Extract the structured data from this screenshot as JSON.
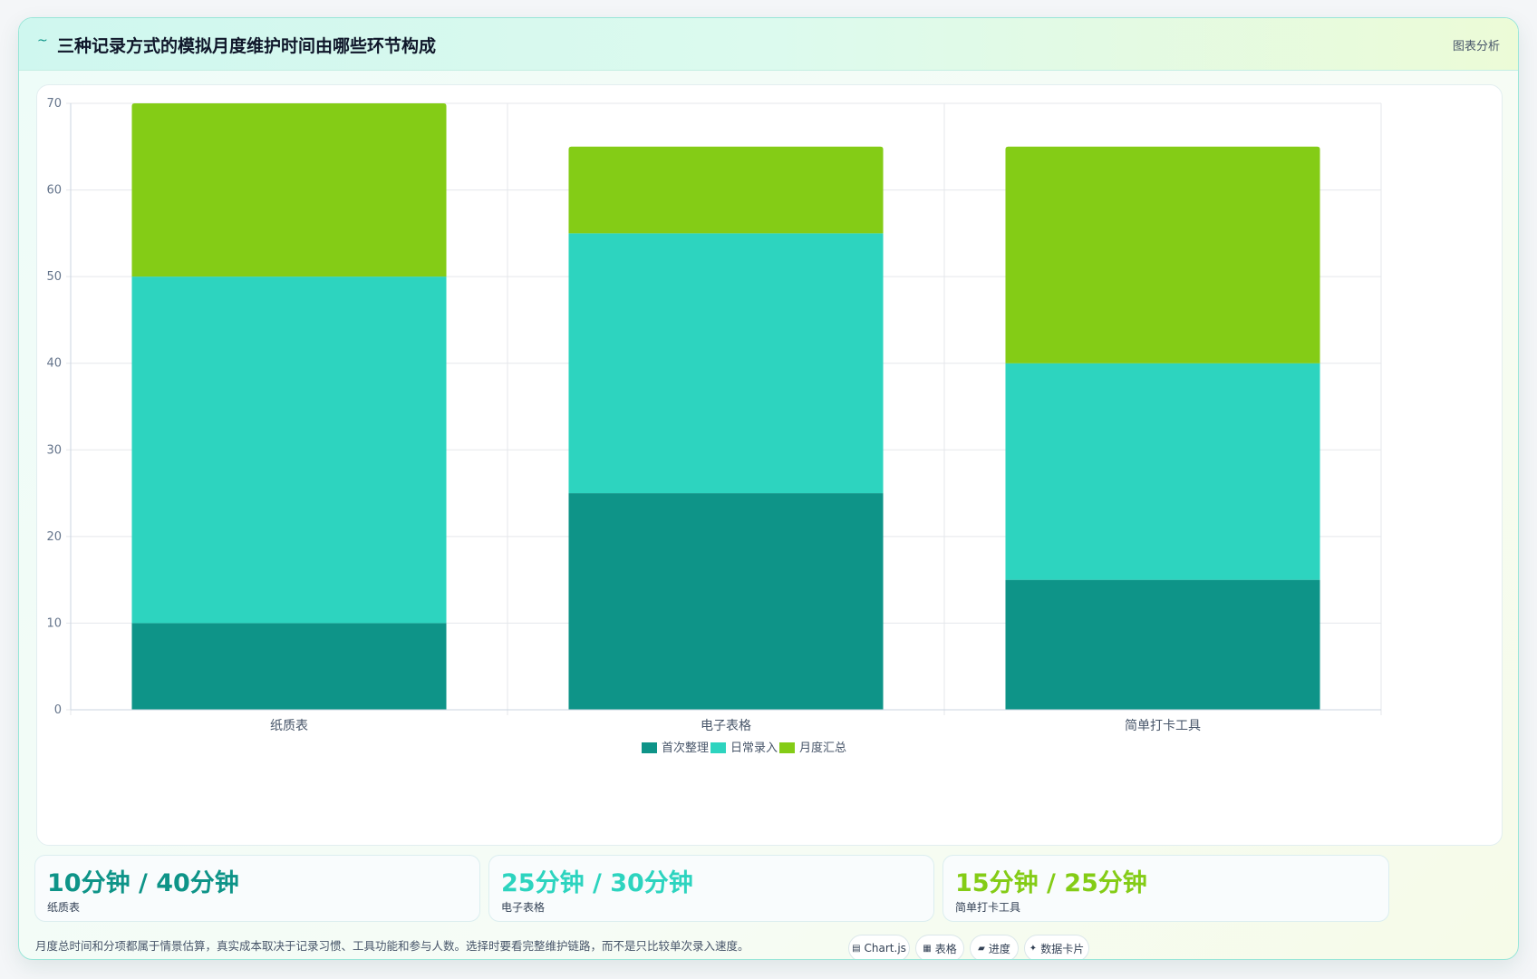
{
  "header": {
    "icon": "~",
    "title": "三种记录方式的模拟月度维护时间由哪些环节构成",
    "tag": "图表分析"
  },
  "colors": {
    "first_organize": "#0e9488",
    "daily_entry": "#2dd4bf",
    "monthly_summary": "#84cc16",
    "grid": "#e5e7eb"
  },
  "chart_data": {
    "type": "bar",
    "stacked": true,
    "categories": [
      "纸质表",
      "电子表格",
      "简单打卡工具"
    ],
    "series": [
      {
        "name": "首次整理",
        "values": [
          10,
          25,
          15
        ],
        "color": "#0e9488"
      },
      {
        "name": "日常录入",
        "values": [
          40,
          30,
          25
        ],
        "color": "#2dd4bf"
      },
      {
        "name": "月度汇总",
        "values": [
          20,
          10,
          25
        ],
        "color": "#84cc16"
      }
    ],
    "ylim": [
      0,
      70
    ],
    "yticks": [
      0,
      10,
      20,
      30,
      40,
      50,
      60,
      70
    ],
    "grid": true,
    "legend_position": "bottom"
  },
  "stats": [
    {
      "value": "10分钟 / 40分钟",
      "label": "纸质表",
      "color": "#0e9488"
    },
    {
      "value": "25分钟 / 30分钟",
      "label": "电子表格",
      "color": "#2dd4bf"
    },
    {
      "value": "15分钟 / 25分钟",
      "label": "简单打卡工具",
      "color": "#84cc16"
    }
  ],
  "footnote": "月度总时间和分项都属于情景估算，真实成本取决于记录习惯、工具功能和参与人数。选择时要看完整维护链路，而不是只比较单次录入速度。",
  "chips": [
    {
      "icon": "▤",
      "label": "Chart.js"
    },
    {
      "icon": "▦",
      "label": "表格"
    },
    {
      "icon": "▰",
      "label": "进度"
    },
    {
      "icon": "✦",
      "label": "数据卡片"
    }
  ]
}
